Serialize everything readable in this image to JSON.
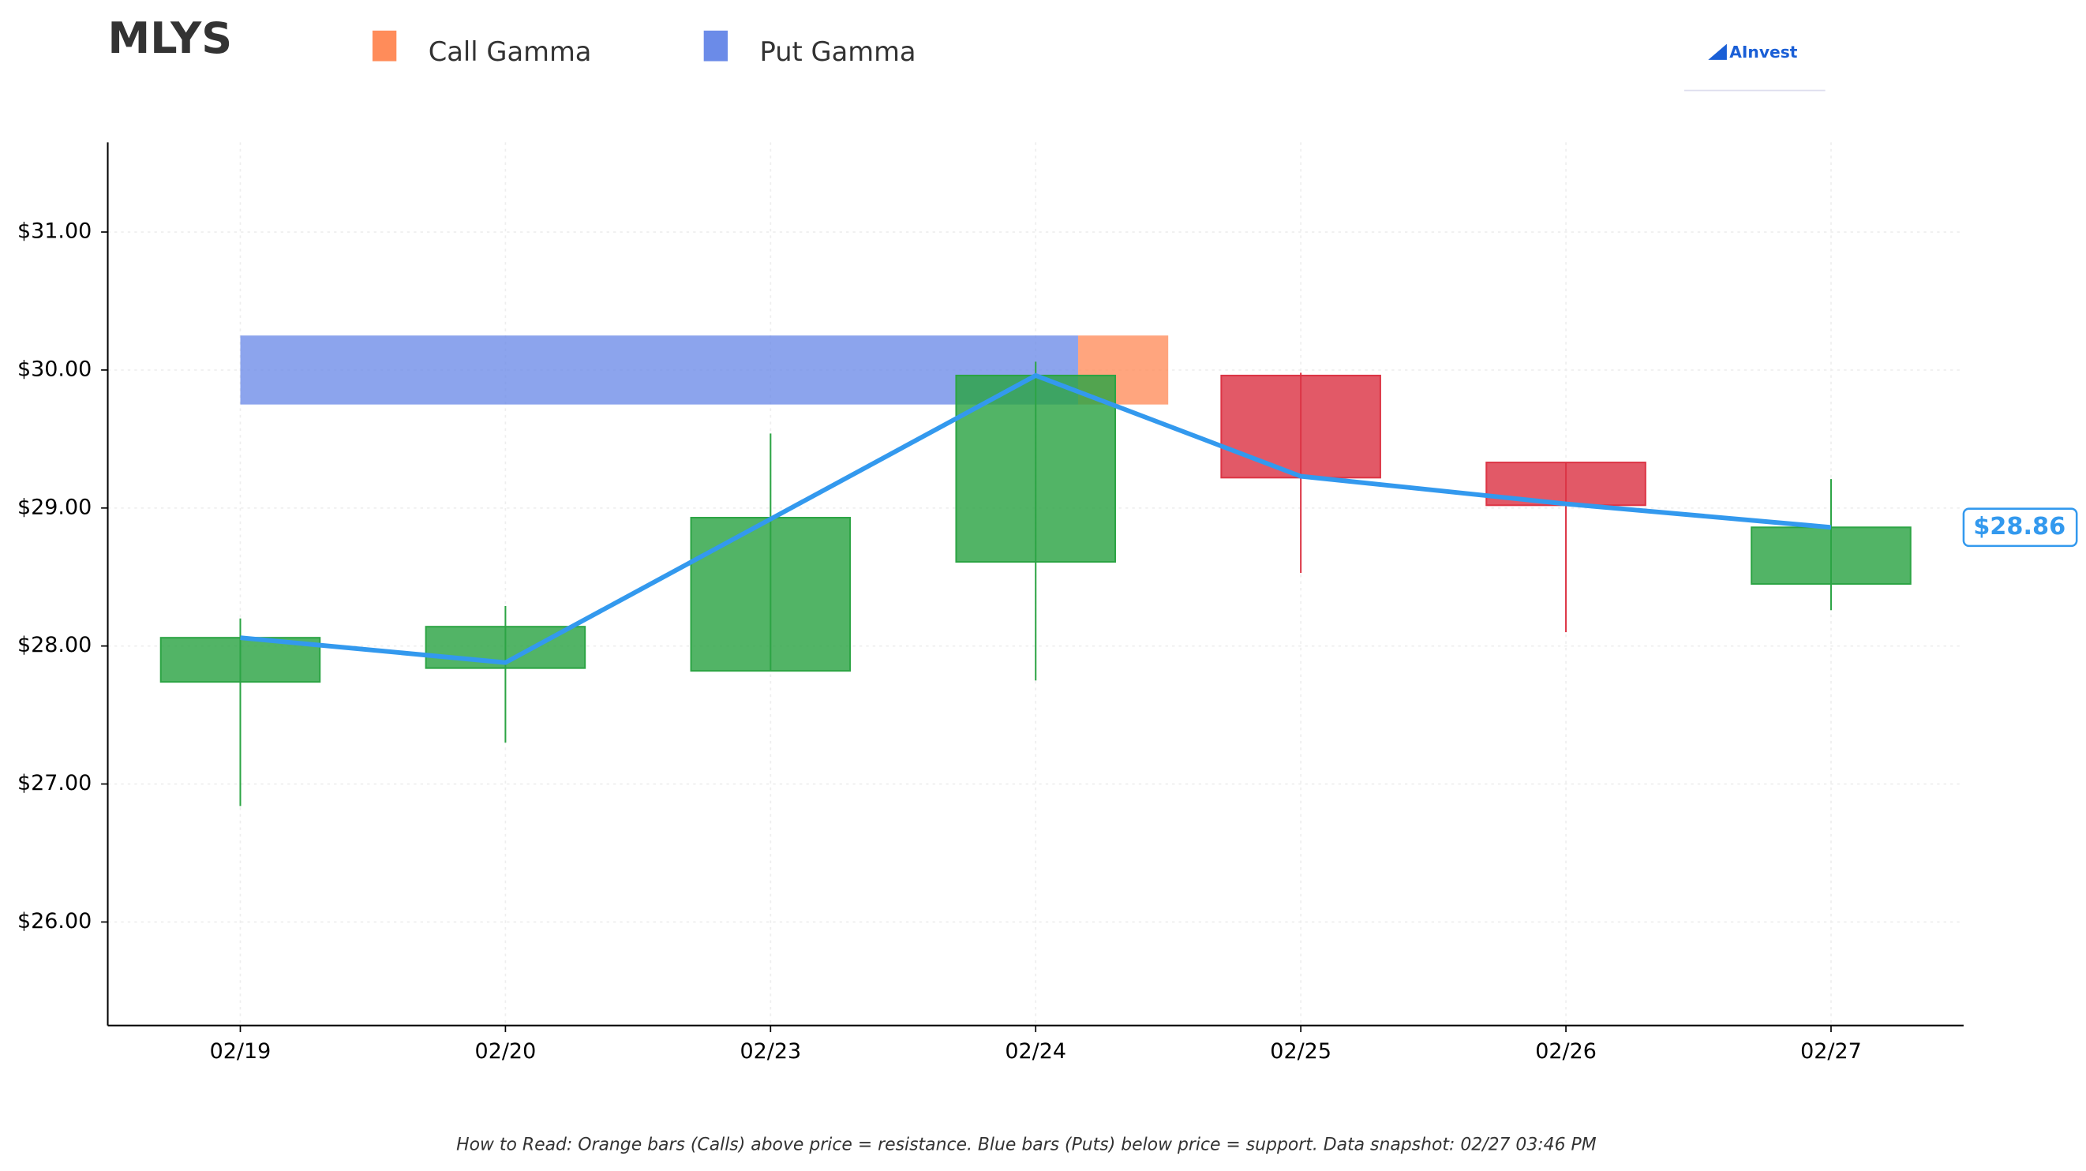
{
  "chart_data": {
    "type": "candlestick",
    "title": "MLYS",
    "legend": [
      {
        "name": "Call Gamma",
        "color": "#ff8c5a"
      },
      {
        "name": "Put Gamma",
        "color": "#6b8be8"
      }
    ],
    "logo": "AInvest",
    "categories": [
      "02/19",
      "02/20",
      "02/23",
      "02/24",
      "02/25",
      "02/26",
      "02/27"
    ],
    "open": [
      27.74,
      27.84,
      27.82,
      28.61,
      29.96,
      29.33,
      28.45
    ],
    "high": [
      28.2,
      28.29,
      29.54,
      30.06,
      29.98,
      29.33,
      29.21
    ],
    "low": [
      26.84,
      27.3,
      27.82,
      27.75,
      28.53,
      28.1,
      28.26
    ],
    "close": [
      28.06,
      28.14,
      28.93,
      29.96,
      29.22,
      29.02,
      28.86
    ],
    "up_color": "#2ca444",
    "down_color": "#dc3545",
    "price": {
      "color": "#3399ee",
      "values": [
        28.06,
        27.88,
        28.92,
        29.96,
        29.23,
        29.03,
        28.86
      ],
      "last_label": "$28.86"
    },
    "gamma": {
      "strike": 30.0,
      "put_extent": 3.16,
      "call_extent": 0.34
    },
    "ylim": [
      25.25,
      31.65
    ],
    "yticks": [
      {
        "value": 26,
        "label": "$26.00"
      },
      {
        "value": 27,
        "label": "$27.00"
      },
      {
        "value": 28,
        "label": "$28.00"
      },
      {
        "value": 29,
        "label": "$29.00"
      },
      {
        "value": 30,
        "label": "$30.00"
      },
      {
        "value": 31,
        "label": "$31.00"
      }
    ],
    "grid": true,
    "footnote": "How to Read: Orange bars (Calls) above price = resistance. Blue bars (Puts) below price = support. Data snapshot: 02/27 03:46 PM"
  }
}
